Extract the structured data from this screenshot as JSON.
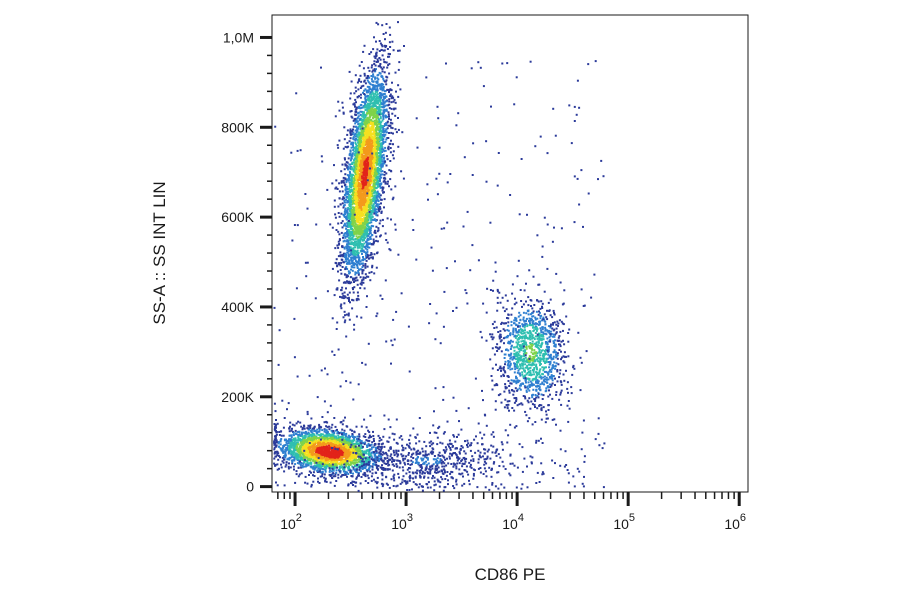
{
  "chart_data": {
    "type": "scatter",
    "title": "",
    "xlabel": "CD86 PE",
    "ylabel": "SS-A :: SS INT LIN",
    "x_scale": "log",
    "y_scale": "linear",
    "xlim": [
      62,
      1200000
    ],
    "ylim": [
      -12000,
      1050000
    ],
    "grid": false,
    "legend": "none",
    "color_scale": [
      "#2b3a9a",
      "#2e7fd0",
      "#2fbfb0",
      "#7fd34a",
      "#f5e020",
      "#f39a1c",
      "#e2231a"
    ],
    "x_ticks": [
      {
        "value": 100,
        "base": "10",
        "exp": "2"
      },
      {
        "value": 1000,
        "base": "10",
        "exp": "3"
      },
      {
        "value": 10000,
        "base": "10",
        "exp": "4"
      },
      {
        "value": 100000,
        "base": "10",
        "exp": "5"
      },
      {
        "value": 1000000,
        "base": "10",
        "exp": "6"
      }
    ],
    "y_ticks": [
      {
        "value": 0,
        "label": "0"
      },
      {
        "value": 200000,
        "label": "200K"
      },
      {
        "value": 400000,
        "label": "400K"
      },
      {
        "value": 600000,
        "label": "600K"
      },
      {
        "value": 800000,
        "label": "800K"
      },
      {
        "value": 1000000,
        "label": "1,0M"
      }
    ],
    "populations": [
      {
        "center_x": 200,
        "center_y": 80000,
        "count": 2600,
        "peak_density": 1.0
      },
      {
        "center_x": 420,
        "center_y": 700000,
        "count": 4200,
        "peak_density": 0.9
      },
      {
        "center_x": 13000,
        "center_y": 300000,
        "count": 1100,
        "peak_density": 0.45
      },
      {
        "center_x": 1500,
        "center_y": 60000,
        "count": 600,
        "peak_density": 0.15
      }
    ]
  }
}
